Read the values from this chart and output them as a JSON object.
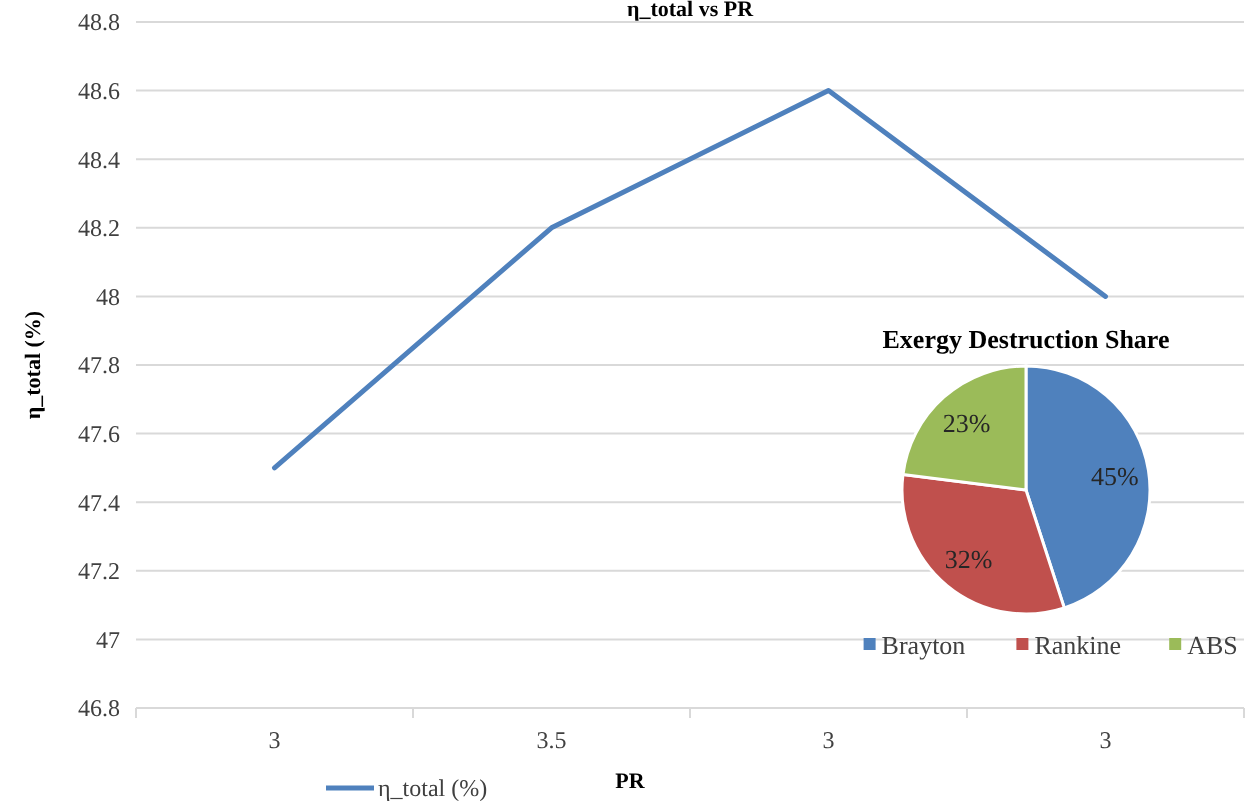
{
  "chart_data": [
    {
      "type": "line",
      "title": "η_total vs PR",
      "xlabel": "PR",
      "ylabel": "η_total (%)",
      "categories": [
        "3",
        "3.5",
        "3",
        "3"
      ],
      "series": [
        {
          "name": "η_total (%)",
          "color": "#4f81bd",
          "values": [
            47.5,
            48.2,
            48.6,
            48.0
          ]
        }
      ],
      "ylim": [
        46.8,
        48.8
      ],
      "yticks": [
        46.8,
        47,
        47.2,
        47.4,
        47.6,
        47.8,
        48,
        48.2,
        48.4,
        48.6,
        48.8
      ],
      "grid": "y",
      "legend": "bottom left",
      "marker": "none",
      "line_style": "solid"
    },
    {
      "type": "pie",
      "title": "Exergy Destruction Share",
      "categories": [
        "Brayton",
        "Rankine",
        "ABS"
      ],
      "values": [
        45,
        32,
        23
      ],
      "value_labels": [
        "45%",
        "32%",
        "23%"
      ],
      "colors": [
        "#4f81bd",
        "#c0504d",
        "#9bbb59"
      ],
      "legend": "bottom"
    }
  ]
}
